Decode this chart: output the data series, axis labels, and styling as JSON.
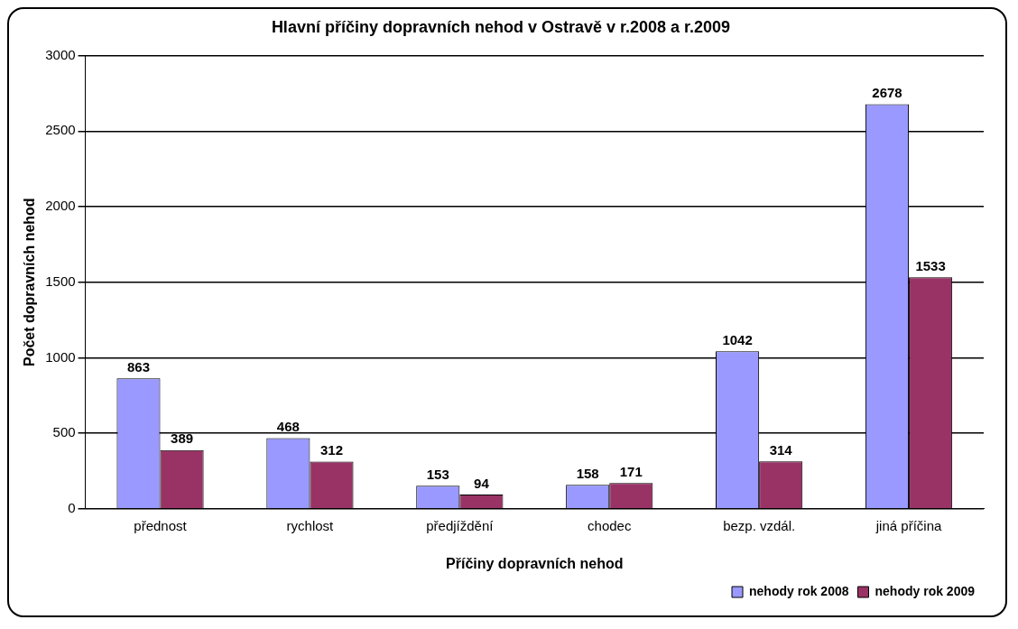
{
  "chart_data": {
    "type": "bar",
    "title": "Hlavní příčiny dopravních nehod v Ostravě v r.2008 a r.2009",
    "xlabel": "Příčiny dopravních nehod",
    "ylabel": "Počet dopravních nehod",
    "categories": [
      "přednost",
      "rychlost",
      "předjíždění",
      "chodec",
      "bezp. vzdál.",
      "jiná příčina"
    ],
    "series": [
      {
        "name": "nehody rok 2008",
        "color": "#9999ff",
        "values": [
          863,
          468,
          153,
          158,
          1042,
          2678
        ]
      },
      {
        "name": "nehody rok 2009",
        "color": "#993366",
        "values": [
          389,
          312,
          94,
          171,
          314,
          1533
        ]
      }
    ],
    "ylim": [
      0,
      3000
    ],
    "yticks": [
      0,
      500,
      1000,
      1500,
      2000,
      2500,
      3000
    ],
    "grid": "y",
    "legend": "bottom right",
    "data_labels": true
  }
}
